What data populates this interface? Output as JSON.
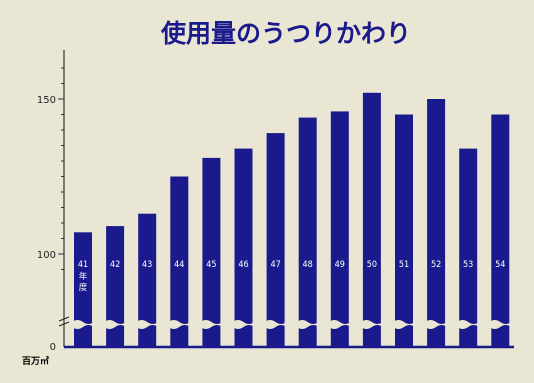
{
  "chart_data": {
    "type": "bar",
    "title": "使用量のうつりかわり",
    "categories": [
      "41",
      "42",
      "43",
      "44",
      "45",
      "46",
      "47",
      "48",
      "49",
      "50",
      "51",
      "52",
      "53",
      "54"
    ],
    "first_category_suffix": "年度",
    "values": [
      107,
      109,
      113,
      125,
      131,
      134,
      139,
      144,
      146,
      152,
      145,
      150,
      134,
      145
    ],
    "y_unit_label": "百万㎥",
    "y_ticks": [
      0,
      100,
      150
    ],
    "ylim": [
      95,
      160
    ],
    "axis_break": true,
    "bar_color": "#1b1a8c",
    "background_color": "#e9e6d3",
    "title_color": "#1b1a8c"
  }
}
